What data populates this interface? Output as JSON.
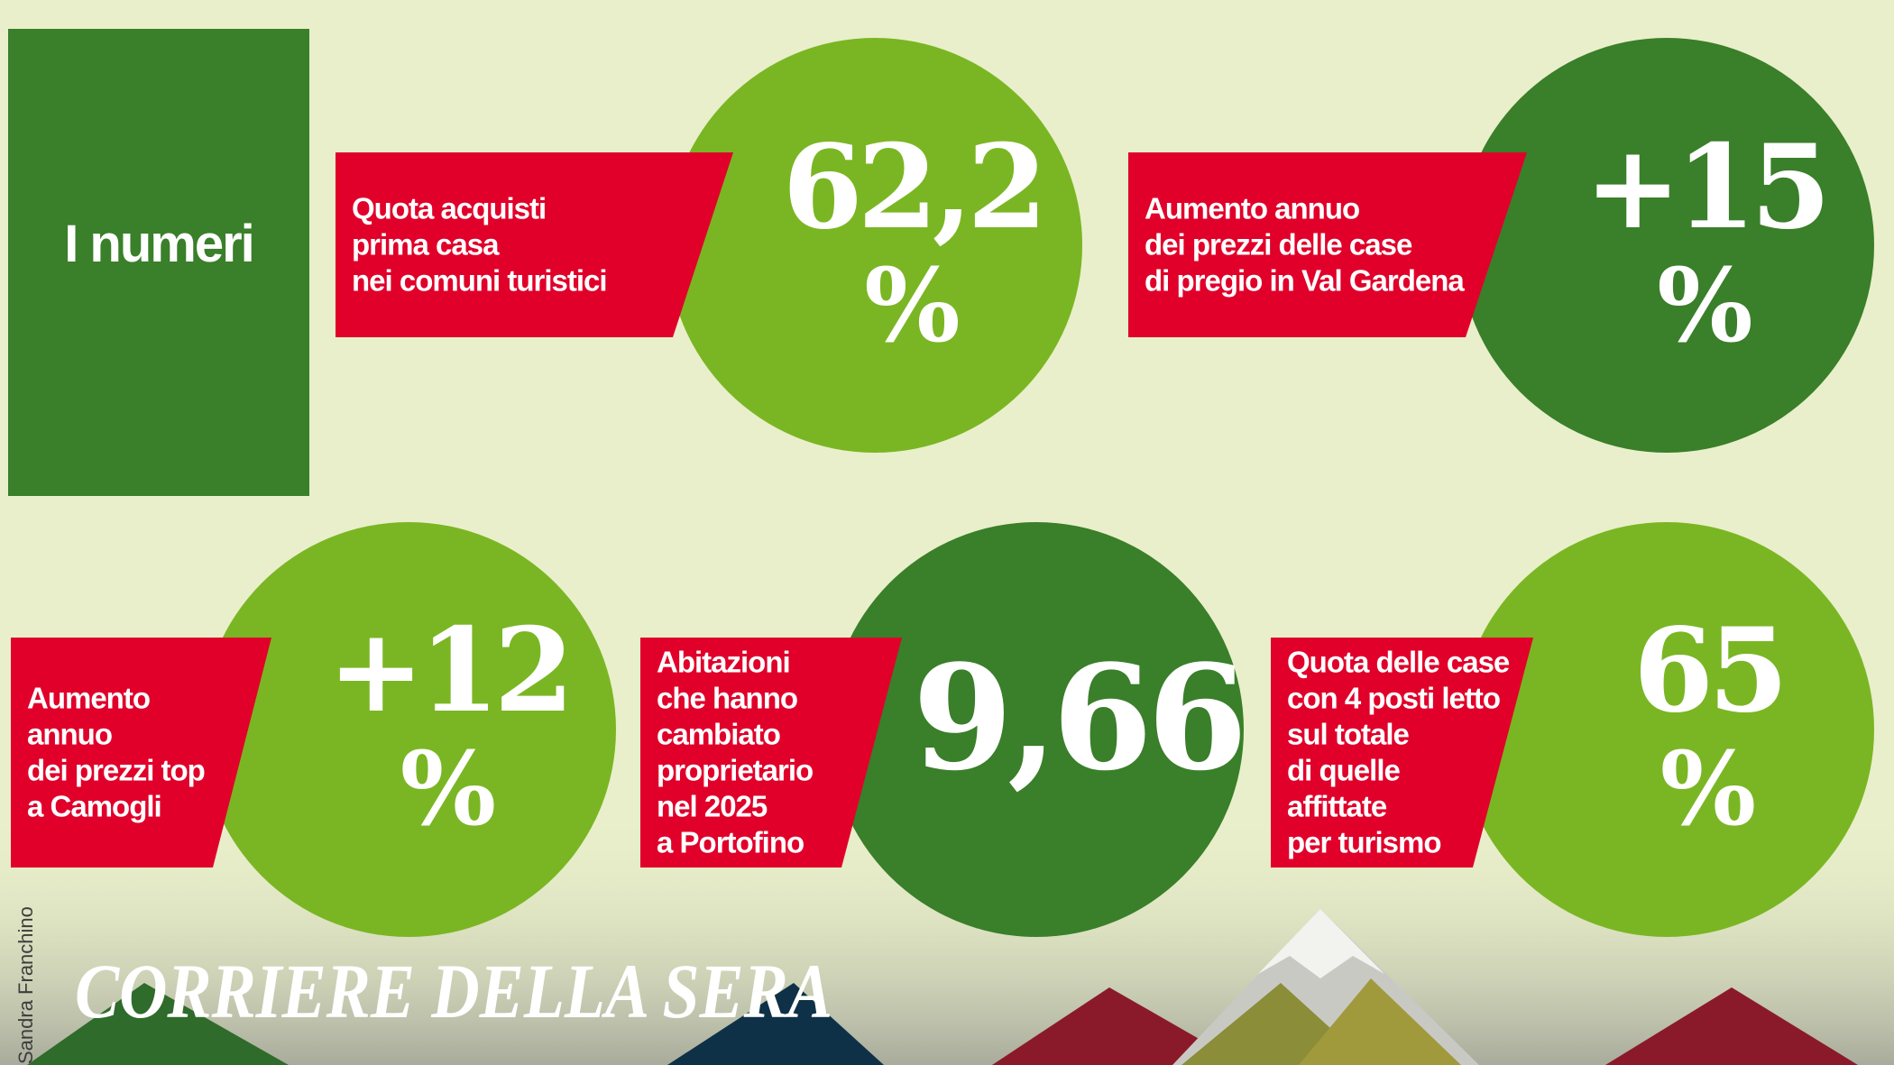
{
  "title": "I numeri",
  "items": [
    {
      "text": [
        "Quota acquisti",
        "prima casa",
        "nei comuni turistici"
      ],
      "value": "62,2",
      "unit": "%"
    },
    {
      "text": [
        "Aumento annuo",
        "dei prezzi delle case",
        "di pregio in Val Gardena"
      ],
      "value": "+15",
      "unit": "%"
    },
    {
      "text": [
        "Aumento",
        "annuo",
        "dei prezzi top",
        "a Camogli"
      ],
      "value": "+12",
      "unit": "%"
    },
    {
      "text": [
        "Abitazioni",
        "che hanno",
        "cambiato",
        "proprietario",
        "nel 2025",
        "a Portofino"
      ],
      "value": "9,66"
    },
    {
      "text": [
        "Quota delle case",
        "con 4 posti letto",
        "sul totale",
        "di quelle",
        "affittate",
        "per turismo"
      ],
      "value": "65",
      "unit": "%"
    }
  ],
  "credit": "Sandra Franchino",
  "logo": "CORRIERE DELLA SERA"
}
